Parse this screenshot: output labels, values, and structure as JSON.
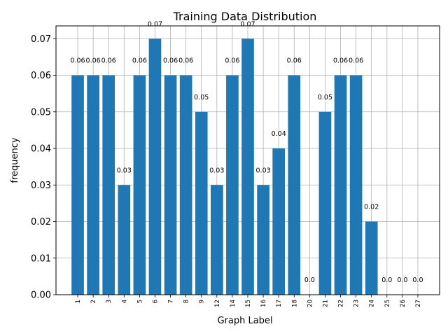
{
  "chart_data": {
    "type": "bar",
    "title": "Training Data Distribution",
    "xlabel": "Graph Label",
    "ylabel": "frequency",
    "categories": [
      "1",
      "2",
      "3",
      "4",
      "5",
      "6",
      "7",
      "8",
      "9",
      "12",
      "14",
      "15",
      "16",
      "17",
      "18",
      "20",
      "21",
      "22",
      "23",
      "24",
      "25",
      "26",
      "27"
    ],
    "values": [
      0.06,
      0.06,
      0.06,
      0.03,
      0.06,
      0.07,
      0.06,
      0.06,
      0.05,
      0.03,
      0.06,
      0.07,
      0.03,
      0.04,
      0.06,
      0.0,
      0.05,
      0.06,
      0.06,
      0.02,
      0.0,
      0.0,
      0.0
    ],
    "value_labels": [
      "0.06",
      "0.06",
      "0.06",
      "0.03",
      "0.06",
      "0.07",
      "0.06",
      "0.06",
      "0.05",
      "0.03",
      "0.06",
      "0.07",
      "0.03",
      "0.04",
      "0.06",
      "0.0",
      "0.05",
      "0.06",
      "0.06",
      "0.02",
      "0.0",
      "0.0",
      "0.0"
    ],
    "yticks": [
      0.0,
      0.01,
      0.02,
      0.03,
      0.04,
      0.05,
      0.06,
      0.07
    ],
    "ytick_labels": [
      "0.00",
      "0.01",
      "0.02",
      "0.03",
      "0.04",
      "0.05",
      "0.06",
      "0.07"
    ],
    "ylim": [
      0,
      0.0735
    ],
    "grid": true,
    "bar_color": "#1f77b4"
  }
}
